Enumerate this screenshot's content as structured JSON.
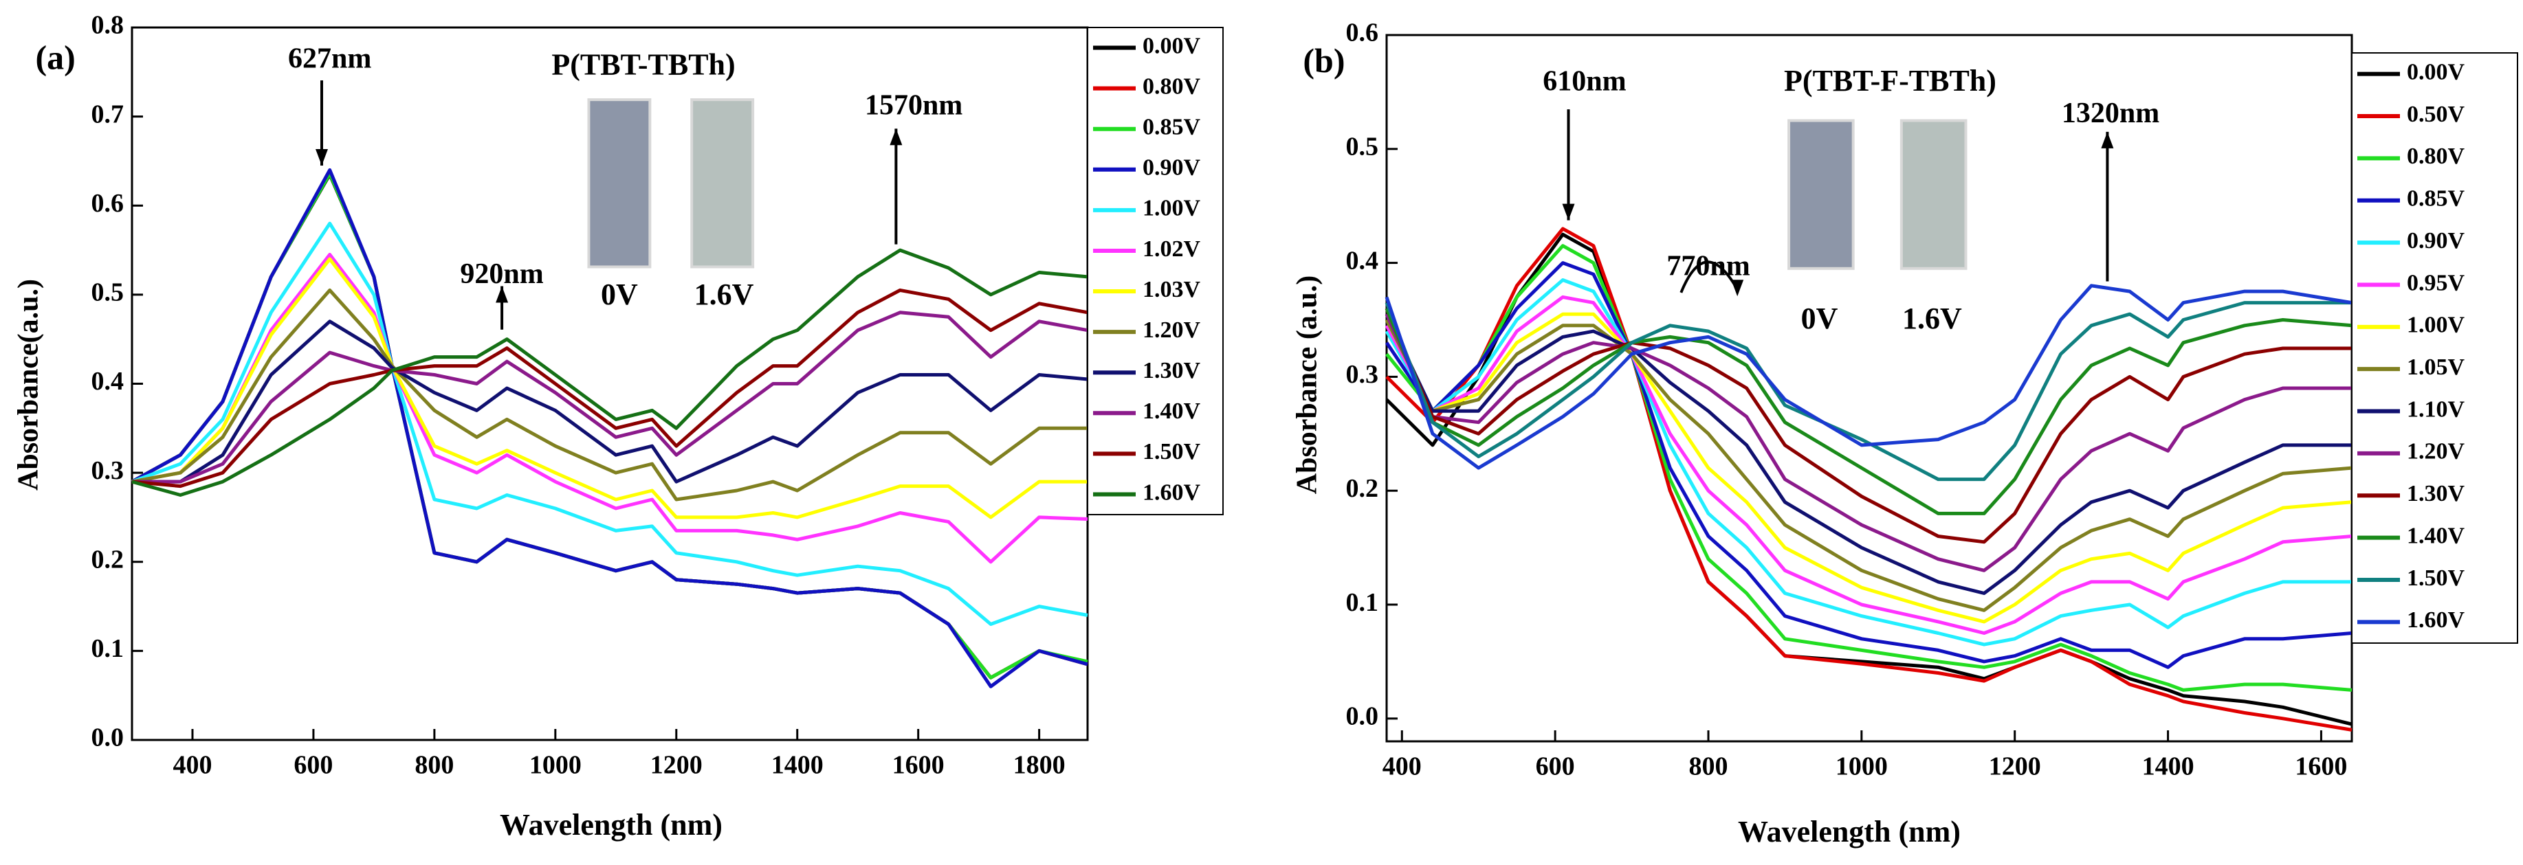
{
  "chart_data": [
    {
      "type": "line",
      "panel_label": "(a)",
      "title": "P(TBT-TBTh)",
      "x_label": "Wavelength (nm)",
      "y_label": "Absorbance(a.u.)",
      "annotations": [
        "627nm",
        "920nm",
        "1570nm"
      ],
      "inset_labels": [
        "0V",
        "1.6V"
      ],
      "legend": "outside-right",
      "xlim": [
        300,
        1880
      ],
      "ylim": [
        0,
        0.8
      ],
      "xticks": [
        400,
        600,
        800,
        1000,
        1200,
        1400,
        1600,
        1800
      ],
      "yticks": [
        {
          "value": 0,
          "label": "0.0"
        },
        0.1,
        0.2,
        0.3,
        0.4,
        0.5,
        0.6,
        0.7,
        0.8
      ],
      "x": [
        300,
        380,
        450,
        530,
        627,
        700,
        730,
        800,
        870,
        920,
        1000,
        1100,
        1160,
        1200,
        1300,
        1360,
        1400,
        1500,
        1570,
        1650,
        1720,
        1800,
        1880
      ],
      "series": [
        {
          "name": "0.00V",
          "color": "#000000",
          "values": [
            0.29,
            0.32,
            0.38,
            0.52,
            0.635,
            0.52,
            0.42,
            0.21,
            0.2,
            0.225,
            0.21,
            0.19,
            0.2,
            0.18,
            0.175,
            0.17,
            0.165,
            0.17,
            0.165,
            0.13,
            0.07,
            0.1,
            0.085
          ]
        },
        {
          "name": "0.80V",
          "color": "#e00000",
          "values": [
            0.29,
            0.32,
            0.38,
            0.52,
            0.638,
            0.52,
            0.42,
            0.21,
            0.2,
            0.225,
            0.21,
            0.19,
            0.2,
            0.18,
            0.175,
            0.17,
            0.165,
            0.17,
            0.165,
            0.13,
            0.07,
            0.1,
            0.085
          ]
        },
        {
          "name": "0.85V",
          "color": "#22dd22",
          "values": [
            0.29,
            0.32,
            0.38,
            0.52,
            0.636,
            0.52,
            0.42,
            0.21,
            0.2,
            0.225,
            0.21,
            0.19,
            0.2,
            0.18,
            0.175,
            0.17,
            0.165,
            0.17,
            0.165,
            0.13,
            0.07,
            0.1,
            0.088
          ]
        },
        {
          "name": "0.90V",
          "color": "#1010c0",
          "values": [
            0.29,
            0.32,
            0.38,
            0.52,
            0.64,
            0.52,
            0.42,
            0.21,
            0.2,
            0.225,
            0.21,
            0.19,
            0.2,
            0.18,
            0.175,
            0.17,
            0.165,
            0.17,
            0.165,
            0.13,
            0.06,
            0.1,
            0.085
          ]
        },
        {
          "name": "1.00V",
          "color": "#22eeff",
          "values": [
            0.29,
            0.31,
            0.36,
            0.48,
            0.58,
            0.5,
            0.42,
            0.27,
            0.26,
            0.275,
            0.26,
            0.235,
            0.24,
            0.21,
            0.2,
            0.19,
            0.185,
            0.195,
            0.19,
            0.17,
            0.13,
            0.15,
            0.14
          ]
        },
        {
          "name": "1.02V",
          "color": "#ff33ff",
          "values": [
            0.29,
            0.3,
            0.35,
            0.46,
            0.545,
            0.48,
            0.42,
            0.32,
            0.3,
            0.32,
            0.29,
            0.26,
            0.27,
            0.235,
            0.235,
            0.23,
            0.225,
            0.24,
            0.255,
            0.245,
            0.2,
            0.25,
            0.248
          ]
        },
        {
          "name": "1.03V",
          "color": "#ffff00",
          "values": [
            0.29,
            0.3,
            0.35,
            0.455,
            0.54,
            0.475,
            0.42,
            0.33,
            0.31,
            0.325,
            0.3,
            0.27,
            0.28,
            0.25,
            0.25,
            0.255,
            0.25,
            0.27,
            0.285,
            0.285,
            0.25,
            0.29,
            0.29
          ]
        },
        {
          "name": "1.20V",
          "color": "#808020",
          "values": [
            0.29,
            0.3,
            0.34,
            0.43,
            0.505,
            0.45,
            0.42,
            0.37,
            0.34,
            0.36,
            0.33,
            0.3,
            0.31,
            0.27,
            0.28,
            0.29,
            0.28,
            0.32,
            0.345,
            0.345,
            0.31,
            0.35,
            0.35
          ]
        },
        {
          "name": "1.30V",
          "color": "#101070",
          "values": [
            0.29,
            0.29,
            0.32,
            0.41,
            0.47,
            0.44,
            0.418,
            0.39,
            0.37,
            0.395,
            0.37,
            0.32,
            0.33,
            0.29,
            0.32,
            0.34,
            0.33,
            0.39,
            0.41,
            0.41,
            0.37,
            0.41,
            0.405
          ]
        },
        {
          "name": "1.40V",
          "color": "#8b1a8b",
          "values": [
            0.29,
            0.29,
            0.31,
            0.38,
            0.435,
            0.42,
            0.415,
            0.41,
            0.4,
            0.425,
            0.39,
            0.34,
            0.35,
            0.32,
            0.37,
            0.4,
            0.4,
            0.46,
            0.48,
            0.475,
            0.43,
            0.47,
            0.46
          ]
        },
        {
          "name": "1.50V",
          "color": "#8b0000",
          "values": [
            0.29,
            0.285,
            0.3,
            0.36,
            0.4,
            0.41,
            0.415,
            0.42,
            0.42,
            0.44,
            0.4,
            0.35,
            0.36,
            0.33,
            0.39,
            0.42,
            0.42,
            0.48,
            0.505,
            0.495,
            0.46,
            0.49,
            0.48
          ]
        },
        {
          "name": "1.60V",
          "color": "#157015",
          "values": [
            0.29,
            0.275,
            0.29,
            0.32,
            0.36,
            0.395,
            0.415,
            0.43,
            0.43,
            0.45,
            0.41,
            0.36,
            0.37,
            0.35,
            0.42,
            0.45,
            0.46,
            0.52,
            0.55,
            0.53,
            0.5,
            0.525,
            0.52
          ]
        }
      ]
    },
    {
      "type": "line",
      "panel_label": "(b)",
      "title": "P(TBT-F-TBTh)",
      "x_label": "Wavelength (nm)",
      "y_label": "Absorbance (a.u.)",
      "annotations": [
        "610nm",
        "770nm",
        "1320nm"
      ],
      "inset_labels": [
        "0V",
        "1.6V"
      ],
      "legend": "outside-right",
      "xlim": [
        380,
        1640
      ],
      "ylim": [
        -0.02,
        0.6
      ],
      "xticks": [
        400,
        600,
        800,
        1000,
        1200,
        1400,
        1600
      ],
      "yticks": [
        {
          "value": 0,
          "label": "0.0"
        },
        0.1,
        0.2,
        0.3,
        0.4,
        0.5,
        0.6
      ],
      "x": [
        380,
        440,
        500,
        550,
        610,
        650,
        700,
        750,
        800,
        850,
        900,
        1000,
        1100,
        1160,
        1200,
        1260,
        1300,
        1350,
        1400,
        1420,
        1500,
        1550,
        1640
      ],
      "series": [
        {
          "name": "0.00V",
          "color": "#000000",
          "values": [
            0.28,
            0.24,
            0.3,
            0.37,
            0.425,
            0.41,
            0.32,
            0.2,
            0.12,
            0.09,
            0.055,
            0.05,
            0.045,
            0.035,
            0.045,
            0.06,
            0.05,
            0.035,
            0.025,
            0.02,
            0.015,
            0.01,
            -0.005
          ]
        },
        {
          "name": "0.50V",
          "color": "#e00000",
          "values": [
            0.3,
            0.26,
            0.31,
            0.38,
            0.43,
            0.415,
            0.32,
            0.2,
            0.12,
            0.09,
            0.055,
            0.048,
            0.04,
            0.033,
            0.045,
            0.06,
            0.05,
            0.03,
            0.02,
            0.015,
            0.005,
            0.0,
            -0.01
          ]
        },
        {
          "name": "0.80V",
          "color": "#22dd22",
          "values": [
            0.32,
            0.27,
            0.31,
            0.37,
            0.415,
            0.4,
            0.32,
            0.21,
            0.14,
            0.11,
            0.07,
            0.06,
            0.05,
            0.045,
            0.05,
            0.065,
            0.055,
            0.04,
            0.03,
            0.025,
            0.03,
            0.03,
            0.025
          ]
        },
        {
          "name": "0.85V",
          "color": "#1010c0",
          "values": [
            0.33,
            0.27,
            0.31,
            0.36,
            0.4,
            0.39,
            0.32,
            0.22,
            0.16,
            0.13,
            0.09,
            0.07,
            0.06,
            0.05,
            0.055,
            0.07,
            0.06,
            0.06,
            0.045,
            0.055,
            0.07,
            0.07,
            0.075
          ]
        },
        {
          "name": "0.90V",
          "color": "#22eeff",
          "values": [
            0.34,
            0.27,
            0.3,
            0.35,
            0.385,
            0.375,
            0.32,
            0.24,
            0.18,
            0.15,
            0.11,
            0.09,
            0.075,
            0.065,
            0.07,
            0.09,
            0.095,
            0.1,
            0.08,
            0.09,
            0.11,
            0.12,
            0.12
          ]
        },
        {
          "name": "0.95V",
          "color": "#ff33ff",
          "values": [
            0.345,
            0.27,
            0.29,
            0.34,
            0.37,
            0.365,
            0.32,
            0.25,
            0.2,
            0.17,
            0.13,
            0.1,
            0.085,
            0.075,
            0.085,
            0.11,
            0.12,
            0.12,
            0.105,
            0.12,
            0.14,
            0.155,
            0.16
          ]
        },
        {
          "name": "1.00V",
          "color": "#ffff00",
          "values": [
            0.35,
            0.27,
            0.285,
            0.33,
            0.355,
            0.355,
            0.32,
            0.27,
            0.22,
            0.19,
            0.15,
            0.115,
            0.095,
            0.085,
            0.1,
            0.13,
            0.14,
            0.145,
            0.13,
            0.145,
            0.17,
            0.185,
            0.19
          ]
        },
        {
          "name": "1.05V",
          "color": "#808020",
          "values": [
            0.35,
            0.27,
            0.28,
            0.32,
            0.345,
            0.345,
            0.32,
            0.28,
            0.25,
            0.21,
            0.17,
            0.13,
            0.105,
            0.095,
            0.115,
            0.15,
            0.165,
            0.175,
            0.16,
            0.175,
            0.2,
            0.215,
            0.22
          ]
        },
        {
          "name": "1.10V",
          "color": "#101070",
          "values": [
            0.355,
            0.27,
            0.27,
            0.31,
            0.335,
            0.34,
            0.325,
            0.295,
            0.27,
            0.24,
            0.19,
            0.15,
            0.12,
            0.11,
            0.13,
            0.17,
            0.19,
            0.2,
            0.185,
            0.2,
            0.225,
            0.24,
            0.24
          ]
        },
        {
          "name": "1.20V",
          "color": "#8b1a8b",
          "values": [
            0.355,
            0.265,
            0.26,
            0.295,
            0.32,
            0.33,
            0.325,
            0.31,
            0.29,
            0.265,
            0.21,
            0.17,
            0.14,
            0.13,
            0.15,
            0.21,
            0.235,
            0.25,
            0.235,
            0.255,
            0.28,
            0.29,
            0.29
          ]
        },
        {
          "name": "1.30V",
          "color": "#8b0000",
          "values": [
            0.36,
            0.265,
            0.25,
            0.28,
            0.305,
            0.32,
            0.33,
            0.325,
            0.31,
            0.29,
            0.24,
            0.195,
            0.16,
            0.155,
            0.18,
            0.25,
            0.28,
            0.3,
            0.28,
            0.3,
            0.32,
            0.325,
            0.325
          ]
        },
        {
          "name": "1.40V",
          "color": "#1a8a1a",
          "values": [
            0.36,
            0.26,
            0.24,
            0.265,
            0.29,
            0.31,
            0.33,
            0.335,
            0.33,
            0.31,
            0.26,
            0.22,
            0.18,
            0.18,
            0.21,
            0.28,
            0.31,
            0.325,
            0.31,
            0.33,
            0.345,
            0.35,
            0.345
          ]
        },
        {
          "name": "1.50V",
          "color": "#108080",
          "values": [
            0.365,
            0.26,
            0.23,
            0.25,
            0.28,
            0.3,
            0.33,
            0.345,
            0.34,
            0.325,
            0.275,
            0.245,
            0.21,
            0.21,
            0.24,
            0.32,
            0.345,
            0.355,
            0.335,
            0.35,
            0.365,
            0.365,
            0.365
          ]
        },
        {
          "name": "1.60V",
          "color": "#1a3ad0",
          "values": [
            0.37,
            0.25,
            0.22,
            0.24,
            0.265,
            0.285,
            0.32,
            0.33,
            0.335,
            0.32,
            0.28,
            0.24,
            0.245,
            0.26,
            0.28,
            0.35,
            0.38,
            0.375,
            0.35,
            0.365,
            0.375,
            0.375,
            0.365
          ]
        }
      ]
    }
  ]
}
